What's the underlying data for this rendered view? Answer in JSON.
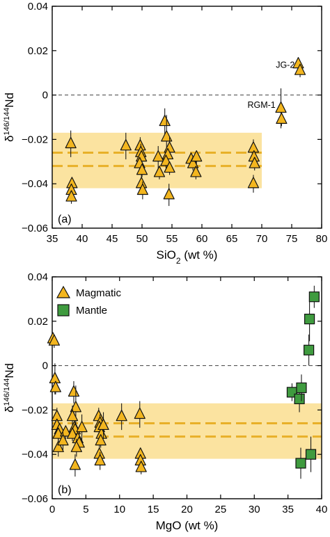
{
  "chart_data": [
    {
      "type": "scatter",
      "panel_label": "(a)",
      "xlabel": "SiO2 (wt %)",
      "xlabel_parts": {
        "base": "SiO",
        "sub": "2",
        "rest": " (wt %)"
      },
      "ylabel_parts": {
        "delta": "δ",
        "sup": "146/144",
        "rest": "Nd"
      },
      "xlim": [
        35,
        80
      ],
      "ylim": [
        -0.06,
        0.04
      ],
      "xticks": [
        35,
        40,
        45,
        50,
        55,
        60,
        65,
        70,
        75,
        80
      ],
      "yticks": [
        0.04,
        0.02,
        0,
        -0.02,
        -0.04,
        -0.06
      ],
      "ytick_labels": [
        "0.04",
        "0.02",
        "0",
        "−0.02",
        "−0.04",
        "−0.06"
      ],
      "zero_line": {
        "y": 0,
        "style": "dashed",
        "color": "#555555"
      },
      "band": {
        "x": [
          35,
          70
        ],
        "y": [
          -0.042,
          -0.017
        ],
        "color": "#fbe3a0"
      },
      "band_lines": {
        "x": [
          35,
          70
        ],
        "y": [
          -0.026,
          -0.032
        ],
        "color": "#e8b028",
        "style": "dashed"
      },
      "annotations": [
        {
          "text": "JG-2",
          "x": 75.5,
          "y": 0.0135,
          "anchor": "end"
        },
        {
          "text": "RGM-1",
          "x": 72.3,
          "y": -0.0045,
          "anchor": "end"
        }
      ],
      "series": [
        {
          "name": "Magmatic",
          "marker": "triangle",
          "color": "#f3b61f",
          "points": [
            {
              "x": 38.1,
              "y": -0.022,
              "err": 0.006
            },
            {
              "x": 38.3,
              "y": -0.04,
              "err": 0.003
            },
            {
              "x": 38.2,
              "y": -0.043,
              "err": 0.003
            },
            {
              "x": 38.2,
              "y": -0.046,
              "err": 0.003
            },
            {
              "x": 47.3,
              "y": -0.023,
              "err": 0.006
            },
            {
              "x": 49.7,
              "y": -0.023,
              "err": 0.004
            },
            {
              "x": 49.8,
              "y": -0.026,
              "err": 0.004
            },
            {
              "x": 49.9,
              "y": -0.028,
              "err": 0.003
            },
            {
              "x": 49.6,
              "y": -0.031,
              "err": 0.003
            },
            {
              "x": 50.0,
              "y": -0.034,
              "err": 0.003
            },
            {
              "x": 49.9,
              "y": -0.04,
              "err": 0.004
            },
            {
              "x": 50.1,
              "y": -0.043,
              "err": 0.004
            },
            {
              "x": 52.7,
              "y": -0.028,
              "err": 0.005
            },
            {
              "x": 52.9,
              "y": -0.035,
              "err": 0.003
            },
            {
              "x": 53.8,
              "y": -0.012,
              "err": 0.006
            },
            {
              "x": 54.1,
              "y": -0.019,
              "err": 0.01
            },
            {
              "x": 54.6,
              "y": -0.024,
              "err": 0.005
            },
            {
              "x": 54.3,
              "y": -0.027,
              "err": 0.003
            },
            {
              "x": 54.0,
              "y": -0.03,
              "err": 0.003
            },
            {
              "x": 54.6,
              "y": -0.033,
              "err": 0.003
            },
            {
              "x": 54.5,
              "y": -0.045,
              "err": 0.005
            },
            {
              "x": 58.2,
              "y": -0.029,
              "err": 0.003
            },
            {
              "x": 58.5,
              "y": -0.031,
              "err": 0.003
            },
            {
              "x": 59.1,
              "y": -0.028,
              "err": 0.003
            },
            {
              "x": 59.0,
              "y": -0.035,
              "err": 0.003
            },
            {
              "x": 68.6,
              "y": -0.024,
              "err": 0.004
            },
            {
              "x": 68.7,
              "y": -0.028,
              "err": 0.003
            },
            {
              "x": 68.8,
              "y": -0.031,
              "err": 0.003
            },
            {
              "x": 68.6,
              "y": -0.04,
              "err": 0.004
            },
            {
              "x": 73.2,
              "y": -0.006,
              "err": 0.009
            },
            {
              "x": 73.3,
              "y": -0.011,
              "err": 0.003
            },
            {
              "x": 76.1,
              "y": 0.014,
              "err": 0.003
            },
            {
              "x": 76.4,
              "y": 0.011,
              "err": 0.003
            }
          ]
        }
      ]
    },
    {
      "type": "scatter",
      "panel_label": "(b)",
      "xlabel": "MgO (wt %)",
      "ylabel_parts": {
        "delta": "δ",
        "sup": "146/144",
        "rest": "Nd"
      },
      "xlim": [
        0,
        40
      ],
      "ylim": [
        -0.06,
        0.04
      ],
      "xticks": [
        0,
        5,
        10,
        15,
        20,
        25,
        30,
        35,
        40
      ],
      "yticks": [
        0.04,
        0.02,
        0,
        -0.02,
        -0.04,
        -0.06
      ],
      "ytick_labels": [
        "0.04",
        "0.02",
        "0",
        "−0.02",
        "−0.04",
        "−0.06"
      ],
      "zero_line": {
        "y": 0,
        "style": "dashed",
        "color": "#555555"
      },
      "band": {
        "x": [
          0,
          40
        ],
        "y": [
          -0.042,
          -0.017
        ],
        "color": "#fbe3a0"
      },
      "band_lines": {
        "x": [
          0,
          40
        ],
        "y": [
          -0.026,
          -0.032
        ],
        "color": "#e8b028",
        "style": "dashed"
      },
      "legend": {
        "placement": "top-left",
        "entries": [
          {
            "label": "Magmatic",
            "marker": "triangle",
            "color": "#f3b61f"
          },
          {
            "label": "Mantle",
            "marker": "square",
            "color": "#3f9b3f"
          }
        ]
      },
      "series": [
        {
          "name": "Magmatic",
          "marker": "triangle",
          "color": "#f3b61f",
          "points": [
            {
              "x": 0.1,
              "y": 0.012,
              "err": 0.003
            },
            {
              "x": 0.3,
              "y": 0.011,
              "err": 0.003
            },
            {
              "x": 0.4,
              "y": -0.006,
              "err": 0.007
            },
            {
              "x": 0.5,
              "y": -0.01,
              "err": 0.003
            },
            {
              "x": 0.7,
              "y": -0.023,
              "err": 0.004
            },
            {
              "x": 0.7,
              "y": -0.027,
              "err": 0.003
            },
            {
              "x": 1.1,
              "y": -0.029,
              "err": 0.003
            },
            {
              "x": 0.9,
              "y": -0.031,
              "err": 0.003
            },
            {
              "x": 0.9,
              "y": -0.037,
              "err": 0.004
            },
            {
              "x": 2.0,
              "y": -0.03,
              "err": 0.003
            },
            {
              "x": 1.6,
              "y": -0.034,
              "err": 0.004
            },
            {
              "x": 3.2,
              "y": -0.012,
              "err": 0.005
            },
            {
              "x": 3.5,
              "y": -0.019,
              "err": 0.01
            },
            {
              "x": 3.0,
              "y": -0.023,
              "err": 0.005
            },
            {
              "x": 3.3,
              "y": -0.028,
              "err": 0.003
            },
            {
              "x": 3.4,
              "y": -0.029,
              "err": 0.003
            },
            {
              "x": 3.0,
              "y": -0.031,
              "err": 0.003
            },
            {
              "x": 3.8,
              "y": -0.033,
              "err": 0.003
            },
            {
              "x": 4.0,
              "y": -0.035,
              "err": 0.003
            },
            {
              "x": 3.6,
              "y": -0.037,
              "err": 0.004
            },
            {
              "x": 3.4,
              "y": -0.045,
              "err": 0.005
            },
            {
              "x": 4.4,
              "y": -0.028,
              "err": 0.006
            },
            {
              "x": 6.9,
              "y": -0.023,
              "err": 0.004
            },
            {
              "x": 7.1,
              "y": -0.026,
              "err": 0.004
            },
            {
              "x": 7.0,
              "y": -0.028,
              "err": 0.003
            },
            {
              "x": 7.3,
              "y": -0.031,
              "err": 0.003
            },
            {
              "x": 7.2,
              "y": -0.034,
              "err": 0.003
            },
            {
              "x": 7.0,
              "y": -0.04,
              "err": 0.004
            },
            {
              "x": 7.1,
              "y": -0.043,
              "err": 0.004
            },
            {
              "x": 7.6,
              "y": -0.027,
              "err": 0.006
            },
            {
              "x": 10.3,
              "y": -0.023,
              "err": 0.006
            },
            {
              "x": 13.0,
              "y": -0.022,
              "err": 0.006
            },
            {
              "x": 13.1,
              "y": -0.04,
              "err": 0.003
            },
            {
              "x": 13.1,
              "y": -0.043,
              "err": 0.003
            },
            {
              "x": 13.2,
              "y": -0.046,
              "err": 0.003
            }
          ]
        },
        {
          "name": "Mantle",
          "marker": "square",
          "color": "#3f9b3f",
          "points": [
            {
              "x": 35.6,
              "y": -0.012,
              "err": 0.004
            },
            {
              "x": 36.7,
              "y": -0.015,
              "err": 0.006
            },
            {
              "x": 37.0,
              "y": -0.01,
              "err": 0.006
            },
            {
              "x": 36.9,
              "y": -0.044,
              "err": 0.007
            },
            {
              "x": 38.1,
              "y": 0.007,
              "err": 0.007
            },
            {
              "x": 38.2,
              "y": 0.021,
              "err": 0.01
            },
            {
              "x": 38.4,
              "y": -0.04,
              "err": 0.008
            },
            {
              "x": 38.9,
              "y": 0.031,
              "err": 0.005
            }
          ]
        }
      ]
    }
  ]
}
